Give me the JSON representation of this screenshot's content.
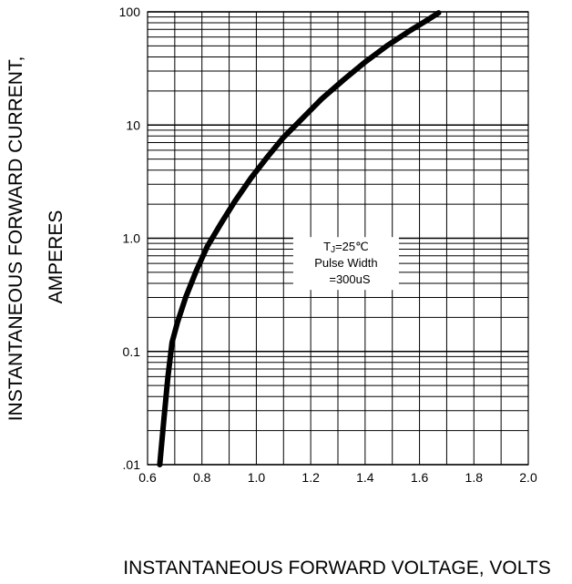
{
  "chart_data": {
    "type": "line",
    "title": "",
    "xlabel": "INSTANTANEOUS FORWARD VOLTAGE,  VOLTS",
    "ylabel_line1": "INSTANTANEOUS FORWARD CURRENT,",
    "ylabel_line2": "AMPERES",
    "xlim": [
      0.6,
      2.0
    ],
    "ylim": [
      0.01,
      100
    ],
    "yscale": "log",
    "grid": true,
    "x_ticks": [
      0.6,
      0.8,
      1.0,
      1.2,
      1.4,
      1.6,
      1.8,
      2.0
    ],
    "x_tick_labels": [
      "0.6",
      "0.8",
      "1.0",
      "1.2",
      "1.4",
      "1.6",
      "1.8",
      "2.0"
    ],
    "y_ticks": [
      0.01,
      0.1,
      1,
      10,
      100
    ],
    "y_tick_labels": [
      ".01",
      "0.1",
      "1.0",
      "10",
      "100"
    ],
    "annotation": {
      "line1_main": "T",
      "line1_sub": "J",
      "line1_rest": "=25℃",
      "line2": "Pulse Width",
      "line3": "=300uS"
    },
    "series": [
      {
        "x": [
          0.645,
          0.66,
          0.675,
          0.69,
          0.71,
          0.74,
          0.78,
          0.82,
          0.87,
          0.92,
          0.98,
          1.04,
          1.1,
          1.17,
          1.24,
          1.32,
          1.4,
          1.48,
          1.56,
          1.62,
          1.67
        ],
        "y": [
          0.01,
          0.025,
          0.06,
          0.12,
          0.18,
          0.3,
          0.52,
          0.85,
          1.35,
          2.1,
          3.4,
          5.2,
          7.8,
          11.5,
          17,
          25,
          36,
          50,
          67,
          82,
          98
        ]
      }
    ],
    "colors": {
      "curve": "#000000",
      "grid": "#000000",
      "background": "#ffffff"
    }
  }
}
